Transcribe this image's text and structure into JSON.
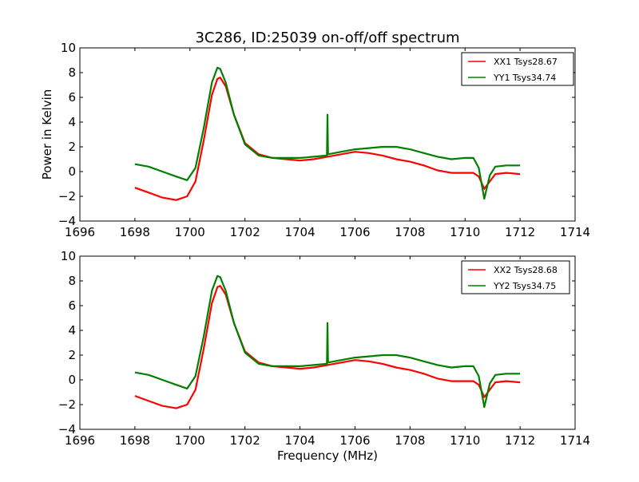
{
  "title": "3C286, ID:25039 on-off/off spectrum",
  "colors": {
    "xx": "#ff0000",
    "yy": "#008000",
    "axes": "#000000",
    "background": "#ffffff"
  },
  "chart_data": [
    {
      "type": "line",
      "title": "3C286, ID:25039 on-off/off spectrum",
      "xlabel": "",
      "ylabel": "Power in Kelvin",
      "xlim": [
        1696,
        1714
      ],
      "ylim": [
        -4,
        10
      ],
      "xticks": [
        1696,
        1698,
        1700,
        1702,
        1704,
        1706,
        1708,
        1710,
        1712,
        1714
      ],
      "yticks": [
        -4,
        -2,
        0,
        2,
        4,
        6,
        8,
        10
      ],
      "grid": false,
      "legend": "top-right",
      "series": [
        {
          "name": "XX1 Tsys28.67",
          "color": "#ff0000",
          "x": [
            1698.0,
            1698.5,
            1699.0,
            1699.5,
            1699.9,
            1700.2,
            1700.5,
            1700.8,
            1701.0,
            1701.1,
            1701.3,
            1701.6,
            1702.0,
            1702.5,
            1703.0,
            1703.5,
            1704.0,
            1704.5,
            1705.0,
            1705.5,
            1706.0,
            1706.5,
            1707.0,
            1707.5,
            1708.0,
            1708.5,
            1709.0,
            1709.5,
            1710.0,
            1710.3,
            1710.5,
            1710.7,
            1710.9,
            1711.1,
            1711.5,
            1712.0
          ],
          "y": [
            -1.3,
            -1.7,
            -2.1,
            -2.3,
            -2.0,
            -0.8,
            2.5,
            6.2,
            7.5,
            7.6,
            6.9,
            4.6,
            2.3,
            1.4,
            1.1,
            1.0,
            0.9,
            1.0,
            1.2,
            1.4,
            1.6,
            1.5,
            1.3,
            1.0,
            0.8,
            0.5,
            0.1,
            -0.1,
            -0.1,
            -0.1,
            -0.4,
            -1.4,
            -0.8,
            -0.2,
            -0.1,
            -0.2
          ]
        },
        {
          "name": "YY1 Tsys34.74",
          "color": "#008000",
          "x": [
            1698.0,
            1698.5,
            1699.0,
            1699.5,
            1699.9,
            1700.2,
            1700.5,
            1700.8,
            1701.0,
            1701.1,
            1701.3,
            1701.6,
            1702.0,
            1702.5,
            1703.0,
            1703.5,
            1704.0,
            1704.5,
            1704.98,
            1705.0,
            1705.02,
            1705.5,
            1706.0,
            1706.5,
            1707.0,
            1707.5,
            1708.0,
            1708.5,
            1709.0,
            1709.5,
            1710.0,
            1710.3,
            1710.5,
            1710.7,
            1710.9,
            1711.1,
            1711.5,
            1712.0
          ],
          "y": [
            0.6,
            0.4,
            0.0,
            -0.4,
            -0.7,
            0.3,
            3.5,
            7.2,
            8.4,
            8.3,
            7.2,
            4.6,
            2.2,
            1.3,
            1.1,
            1.1,
            1.1,
            1.2,
            1.3,
            4.6,
            1.4,
            1.6,
            1.8,
            1.9,
            2.0,
            2.0,
            1.8,
            1.5,
            1.2,
            1.0,
            1.1,
            1.1,
            0.3,
            -2.2,
            -0.3,
            0.4,
            0.5,
            0.5
          ]
        }
      ]
    },
    {
      "type": "line",
      "title": "",
      "xlabel": "Frequency (MHz)",
      "ylabel": "",
      "xlim": [
        1696,
        1714
      ],
      "ylim": [
        -4,
        10
      ],
      "xticks": [
        1696,
        1698,
        1700,
        1702,
        1704,
        1706,
        1708,
        1710,
        1712,
        1714
      ],
      "yticks": [
        -4,
        -2,
        0,
        2,
        4,
        6,
        8,
        10
      ],
      "grid": false,
      "legend": "top-right",
      "series": [
        {
          "name": "XX2 Tsys28.68",
          "color": "#ff0000",
          "x": [
            1698.0,
            1698.5,
            1699.0,
            1699.5,
            1699.9,
            1700.2,
            1700.5,
            1700.8,
            1701.0,
            1701.1,
            1701.3,
            1701.6,
            1702.0,
            1702.5,
            1703.0,
            1703.5,
            1704.0,
            1704.5,
            1705.0,
            1705.5,
            1706.0,
            1706.5,
            1707.0,
            1707.5,
            1708.0,
            1708.5,
            1709.0,
            1709.5,
            1710.0,
            1710.3,
            1710.5,
            1710.7,
            1710.9,
            1711.1,
            1711.5,
            1712.0
          ],
          "y": [
            -1.3,
            -1.7,
            -2.1,
            -2.3,
            -2.0,
            -0.8,
            2.5,
            6.2,
            7.5,
            7.6,
            6.9,
            4.6,
            2.3,
            1.4,
            1.1,
            1.0,
            0.9,
            1.0,
            1.2,
            1.4,
            1.6,
            1.5,
            1.3,
            1.0,
            0.8,
            0.5,
            0.1,
            -0.1,
            -0.1,
            -0.1,
            -0.4,
            -1.4,
            -0.8,
            -0.2,
            -0.1,
            -0.2
          ]
        },
        {
          "name": "YY2 Tsys34.75",
          "color": "#008000",
          "x": [
            1698.0,
            1698.5,
            1699.0,
            1699.5,
            1699.9,
            1700.2,
            1700.5,
            1700.8,
            1701.0,
            1701.1,
            1701.3,
            1701.6,
            1702.0,
            1702.5,
            1703.0,
            1703.5,
            1704.0,
            1704.5,
            1704.98,
            1705.0,
            1705.02,
            1705.5,
            1706.0,
            1706.5,
            1707.0,
            1707.5,
            1708.0,
            1708.5,
            1709.0,
            1709.5,
            1710.0,
            1710.3,
            1710.5,
            1710.7,
            1710.9,
            1711.1,
            1711.5,
            1712.0
          ],
          "y": [
            0.6,
            0.4,
            0.0,
            -0.4,
            -0.7,
            0.3,
            3.5,
            7.2,
            8.4,
            8.3,
            7.2,
            4.6,
            2.2,
            1.3,
            1.1,
            1.1,
            1.1,
            1.2,
            1.3,
            4.6,
            1.4,
            1.6,
            1.8,
            1.9,
            2.0,
            2.0,
            1.8,
            1.5,
            1.2,
            1.0,
            1.1,
            1.1,
            0.3,
            -2.2,
            -0.3,
            0.4,
            0.5,
            0.5
          ]
        }
      ]
    }
  ]
}
